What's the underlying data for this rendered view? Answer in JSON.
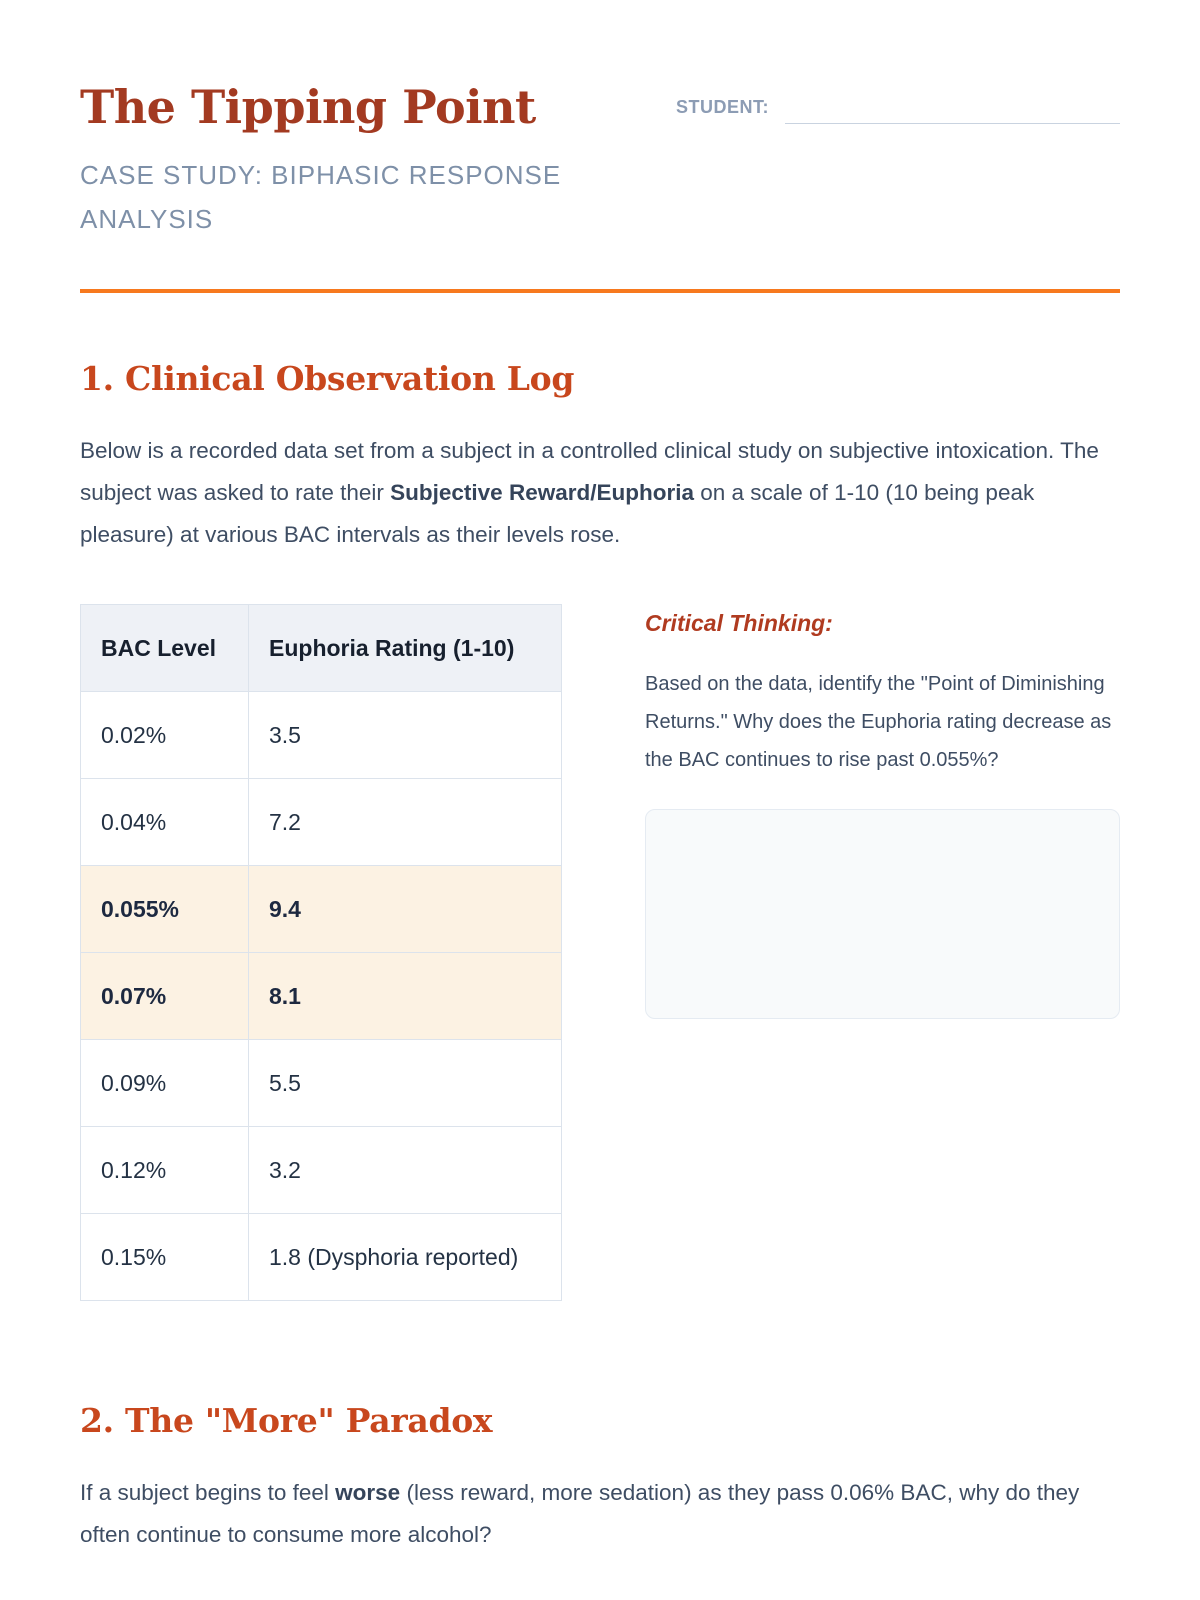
{
  "header": {
    "title": "The Tipping Point",
    "subtitle": "CASE STUDY: BIPHASIC RESPONSE ANALYSIS",
    "student_label": "STUDENT:",
    "student_value": ""
  },
  "colors": {
    "title": "#a33a21",
    "section_heading": "#c8471d",
    "critical_heading": "#b03b20",
    "divider_orange": "#f7791e",
    "body_text": "#3e4d63",
    "muted_blue_gray": "#7e90a8",
    "table_header_bg": "#eef1f6",
    "table_border": "#dce3ec",
    "highlight_row_bg": "#fcf2e3",
    "answer_box_bg": "#f8fafb"
  },
  "section1": {
    "heading": "1. Clinical Observation Log",
    "intro": {
      "part1": "Below is a recorded data set from a subject in a controlled clinical study on subjective intoxication. The subject was asked to rate their ",
      "bold": "Subjective Reward/Euphoria",
      "part2": " on a scale of 1-10 (10 being peak pleasure) at various BAC intervals as their levels rose."
    },
    "table": {
      "headers": [
        "BAC Level",
        "Euphoria Rating (1-10)"
      ],
      "rows": [
        {
          "bac": "0.02%",
          "rating": "3.5",
          "highlight": false
        },
        {
          "bac": "0.04%",
          "rating": "7.2",
          "highlight": false
        },
        {
          "bac": "0.055%",
          "rating": "9.4",
          "highlight": true
        },
        {
          "bac": "0.07%",
          "rating": "8.1",
          "highlight": true
        },
        {
          "bac": "0.09%",
          "rating": "5.5",
          "highlight": false
        },
        {
          "bac": "0.12%",
          "rating": "3.2",
          "highlight": false
        },
        {
          "bac": "0.15%",
          "rating": "1.8 (Dysphoria reported)",
          "highlight": false
        }
      ]
    },
    "critical_thinking": {
      "heading": "Critical Thinking:",
      "question": "Based on the data, identify the \"Point of Diminishing Returns.\" Why does the Euphoria rating decrease as the BAC continues to rise past 0.055%?",
      "answer_value": ""
    }
  },
  "section2": {
    "heading": "2. The \"More\" Paradox",
    "paragraph": {
      "part1": "If a subject begins to feel ",
      "bold": "worse",
      "part2": " (less reward, more sedation) as they pass 0.06% BAC, why do they often continue to consume more alcohol?"
    }
  }
}
